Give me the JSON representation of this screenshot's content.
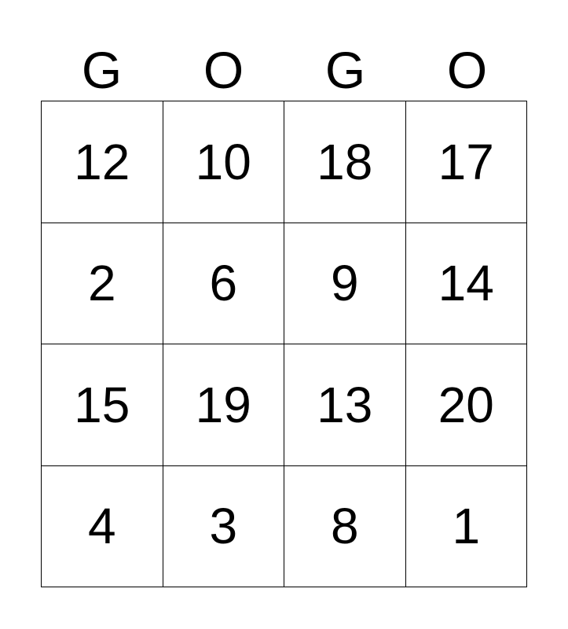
{
  "header": [
    "G",
    "O",
    "G",
    "O"
  ],
  "rows": [
    [
      "12",
      "10",
      "18",
      "17"
    ],
    [
      "2",
      "6",
      "9",
      "14"
    ],
    [
      "15",
      "19",
      "13",
      "20"
    ],
    [
      "4",
      "3",
      "8",
      "1"
    ]
  ]
}
